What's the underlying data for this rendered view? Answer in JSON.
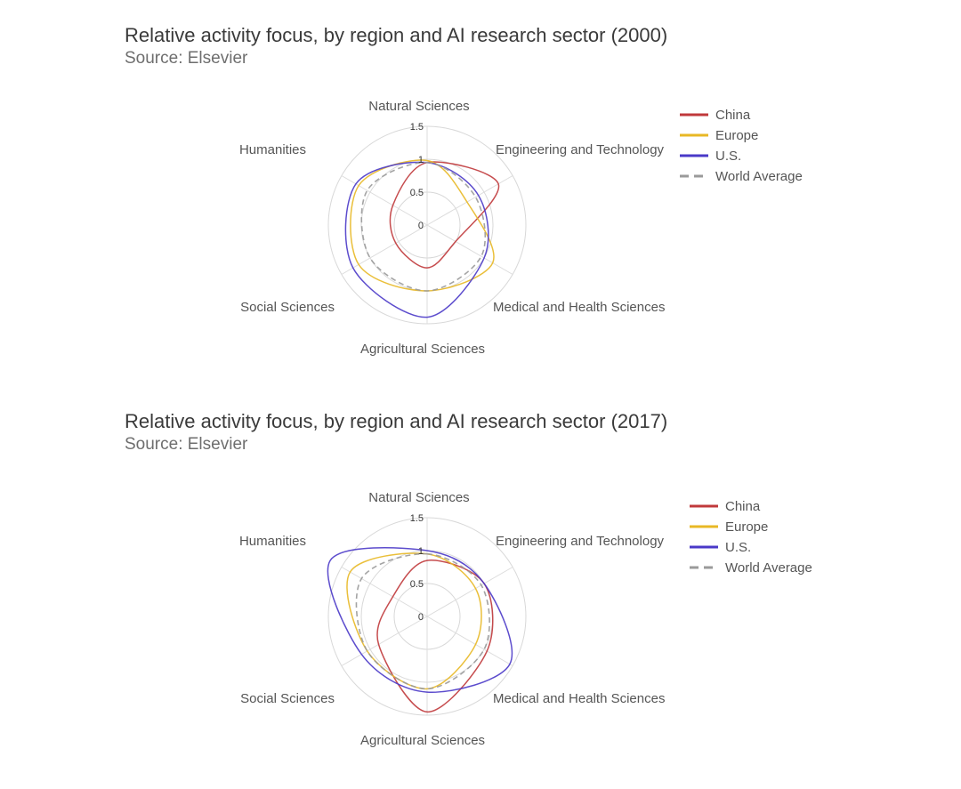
{
  "colors": {
    "China": "#c0393b",
    "Europe": "#e8b825",
    "U.S.": "#4a39c8",
    "World Average": "#9a9a9a"
  },
  "chart_data": [
    {
      "type": "radar",
      "title": "Relative activity focus, by region and AI research sector (2000)",
      "subtitle": "Source: Elsevier",
      "categories": [
        "Natural Sciences",
        "Engineering and Technology",
        "Medical and Health Sciences",
        "Agricultural Sciences",
        "Social Sciences",
        "Humanities"
      ],
      "rlim": [
        0,
        1.5
      ],
      "ticks": [
        "0",
        "0.5",
        "1",
        "1.5"
      ],
      "grid": true,
      "legend": "top-right",
      "series": [
        {
          "name": "China",
          "values": [
            0.95,
            1.25,
            0.5,
            0.65,
            0.55,
            0.6
          ]
        },
        {
          "name": "Europe",
          "values": [
            0.98,
            0.7,
            1.15,
            1.0,
            1.2,
            1.2
          ]
        },
        {
          "name": "U.S.",
          "values": [
            0.95,
            0.9,
            1.0,
            1.4,
            1.3,
            1.25
          ]
        },
        {
          "name": "World Average",
          "values": [
            0.95,
            0.85,
            0.95,
            1.0,
            1.0,
            1.05
          ]
        }
      ]
    },
    {
      "type": "radar",
      "title": "Relative activity focus, by region and AI research sector (2017)",
      "subtitle": "Source: Elsevier",
      "categories": [
        "Natural Sciences",
        "Engineering and Technology",
        "Medical and Health Sciences",
        "Agricultural Sciences",
        "Social Sciences",
        "Humanities"
      ],
      "rlim": [
        0,
        1.5
      ],
      "ticks": [
        "0",
        "0.5",
        "1",
        "1.5"
      ],
      "grid": true,
      "legend": "top-right",
      "series": [
        {
          "name": "China",
          "values": [
            0.85,
            1.0,
            1.05,
            1.45,
            0.85,
            0.6
          ]
        },
        {
          "name": "Europe",
          "values": [
            0.95,
            0.85,
            0.85,
            1.1,
            1.05,
            1.35
          ]
        },
        {
          "name": "U.S.",
          "values": [
            1.0,
            1.0,
            1.45,
            1.15,
            1.15,
            1.7
          ]
        },
        {
          "name": "World Average",
          "values": [
            0.95,
            0.95,
            1.0,
            1.1,
            1.05,
            1.15
          ]
        }
      ]
    }
  ]
}
